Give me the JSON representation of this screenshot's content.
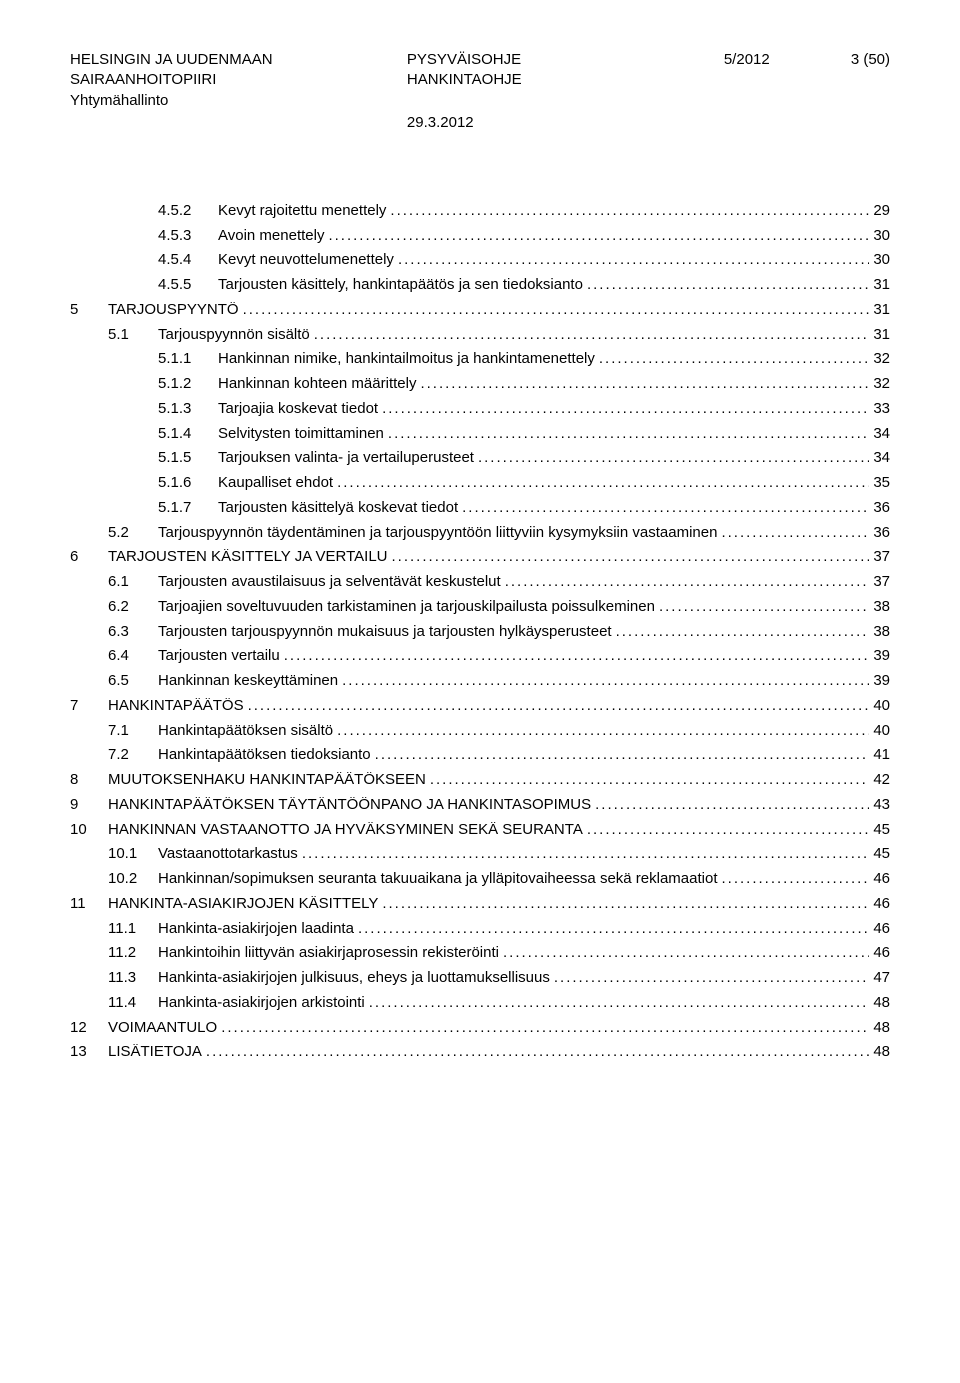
{
  "header": {
    "org_line1": "HELSINGIN JA UUDENMAAN",
    "org_line2": "SAIRAANHOITOPIIRI",
    "org_line3": "Yhtymähallinto",
    "doc_line1": "PYSYVÄISOHJE",
    "doc_line2": "HANKINTAOHJE",
    "date": "29.3.2012",
    "ref": "5/2012",
    "page": "3 (50)"
  },
  "toc": [
    {
      "lvl": 2,
      "num": "4.5.2",
      "label": "Kevyt rajoitettu menettely",
      "page": "29"
    },
    {
      "lvl": 2,
      "num": "4.5.3",
      "label": "Avoin menettely",
      "page": "30"
    },
    {
      "lvl": 2,
      "num": "4.5.4",
      "label": "Kevyt neuvottelumenettely",
      "page": "30"
    },
    {
      "lvl": 2,
      "num": "4.5.5",
      "label": "Tarjousten käsittely, hankintapäätös ja sen tiedoksianto",
      "page": "31"
    },
    {
      "lvl": 0,
      "num": "5",
      "label": "TARJOUSPYYNTÖ",
      "page": "31"
    },
    {
      "lvl": 1,
      "num": "5.1",
      "label": "Tarjouspyynnön sisältö",
      "page": "31"
    },
    {
      "lvl": 2,
      "num": "5.1.1",
      "label": "Hankinnan nimike, hankintailmoitus ja hankintamenettely",
      "page": "32"
    },
    {
      "lvl": 2,
      "num": "5.1.2",
      "label": "Hankinnan kohteen määrittely",
      "page": "32"
    },
    {
      "lvl": 2,
      "num": "5.1.3",
      "label": "Tarjoajia koskevat tiedot",
      "page": "33"
    },
    {
      "lvl": 2,
      "num": "5.1.4",
      "label": "Selvitysten toimittaminen",
      "page": "34"
    },
    {
      "lvl": 2,
      "num": "5.1.5",
      "label": "Tarjouksen valinta- ja vertailuperusteet",
      "page": "34"
    },
    {
      "lvl": 2,
      "num": "5.1.6",
      "label": "Kaupalliset ehdot",
      "page": "35"
    },
    {
      "lvl": 2,
      "num": "5.1.7",
      "label": "Tarjousten käsittelyä koskevat tiedot",
      "page": "36"
    },
    {
      "lvl": 1,
      "num": "5.2",
      "label": "Tarjouspyynnön täydentäminen ja tarjouspyyntöön liittyviin kysymyksiin vastaaminen",
      "page": "36"
    },
    {
      "lvl": 0,
      "num": "6",
      "label": "TARJOUSTEN KÄSITTELY JA VERTAILU",
      "page": "37"
    },
    {
      "lvl": 1,
      "num": "6.1",
      "label": "Tarjousten avaustilaisuus ja selventävät keskustelut",
      "page": "37"
    },
    {
      "lvl": 1,
      "num": "6.2",
      "label": "Tarjoajien soveltuvuuden tarkistaminen ja tarjouskilpailusta poissulkeminen",
      "page": "38"
    },
    {
      "lvl": 1,
      "num": "6.3",
      "label": "Tarjousten tarjouspyynnön mukaisuus ja tarjousten hylkäysperusteet",
      "page": "38"
    },
    {
      "lvl": 1,
      "num": "6.4",
      "label": "Tarjousten vertailu",
      "page": "39"
    },
    {
      "lvl": 1,
      "num": "6.5",
      "label": "Hankinnan keskeyttäminen",
      "page": "39"
    },
    {
      "lvl": 0,
      "num": "7",
      "label": "HANKINTAPÄÄTÖS",
      "page": "40"
    },
    {
      "lvl": 1,
      "num": "7.1",
      "label": "Hankintapäätöksen sisältö",
      "page": "40"
    },
    {
      "lvl": 1,
      "num": "7.2",
      "label": "Hankintapäätöksen tiedoksianto",
      "page": "41"
    },
    {
      "lvl": 0,
      "num": "8",
      "label": "MUUTOKSENHAKU HANKINTAPÄÄTÖKSEEN",
      "page": "42"
    },
    {
      "lvl": 0,
      "num": "9",
      "label": "HANKINTAPÄÄTÖKSEN TÄYTÄNTÖÖNPANO JA HANKINTASOPIMUS",
      "page": "43"
    },
    {
      "lvl": 0,
      "num": "10",
      "label": "HANKINNAN VASTAANOTTO JA HYVÄKSYMINEN SEKÄ SEURANTA",
      "page": "45"
    },
    {
      "lvl": 1,
      "num": "10.1",
      "label": "Vastaanottotarkastus",
      "page": "45"
    },
    {
      "lvl": 1,
      "num": "10.2",
      "label": "Hankinnan/sopimuksen seuranta takuuaikana ja ylläpitovaiheessa sekä reklamaatiot",
      "page": "46"
    },
    {
      "lvl": 0,
      "num": "11",
      "label": "HANKINTA-ASIAKIRJOJEN KÄSITTELY",
      "page": "46"
    },
    {
      "lvl": 1,
      "num": "11.1",
      "label": "Hankinta-asiakirjojen laadinta",
      "page": "46"
    },
    {
      "lvl": 1,
      "num": "11.2",
      "label": "Hankintoihin liittyvän asiakirjaprosessin rekisteröinti",
      "page": "46"
    },
    {
      "lvl": 1,
      "num": "11.3",
      "label": "Hankinta-asiakirjojen julkisuus, eheys ja luottamuksellisuus",
      "page": "47"
    },
    {
      "lvl": 1,
      "num": "11.4",
      "label": "Hankinta-asiakirjojen arkistointi",
      "page": "48"
    },
    {
      "lvl": 0,
      "num": "12",
      "label": "VOIMAANTULO",
      "page": "48"
    },
    {
      "lvl": 0,
      "num": "13",
      "label": "LISÄTIETOJA",
      "page": "48"
    }
  ]
}
